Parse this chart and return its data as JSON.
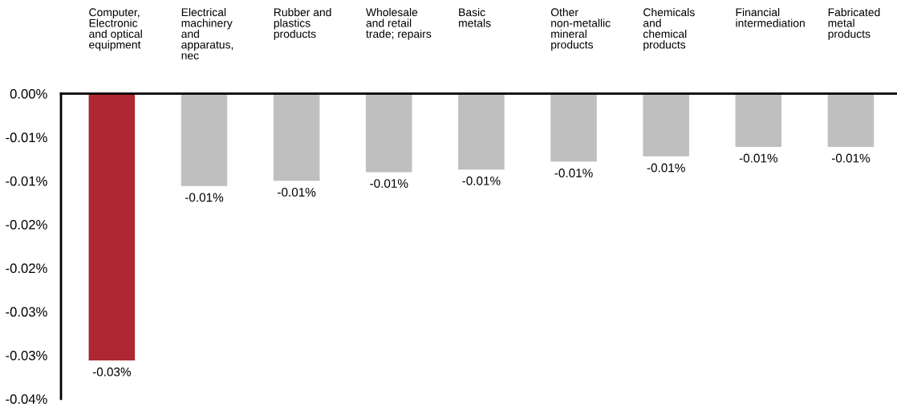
{
  "chart_data": {
    "type": "bar",
    "categories": [
      "Computer,\nElectronic\nand optical\nequipment",
      "Electrical\nmachinery\nand\napparatus,\nnec",
      "Rubber and\nplastics\nproducts",
      "Wholesale\nand retail\ntrade; repairs",
      "Basic\nmetals",
      "Other\nnon-metallic\nmineral\nproducts",
      "Chemicals\nand\nchemical\nproducts",
      "Financial\nintermediation",
      "Fabricated\nmetal\nproducts"
    ],
    "values": [
      -0.0306,
      -0.0106,
      -0.01,
      -0.009,
      -0.0087,
      -0.0078,
      -0.0072,
      -0.0061,
      -0.0061
    ],
    "colors": [
      "#ae2831",
      "#bfbfbf",
      "#bfbfbf",
      "#bfbfbf",
      "#bfbfbf",
      "#bfbfbf",
      "#bfbfbf",
      "#bfbfbf",
      "#bfbfbf"
    ],
    "value_labels": [
      "-0.03%",
      "-0.01%",
      "-0.01%",
      "-0.01%",
      "-0.01%",
      "-0.01%",
      "-0.01%",
      "-0.01%",
      "-0.01%"
    ],
    "ylim": [
      -0.035,
      0
    ],
    "yticks": [
      {
        "value": 0,
        "label": "0.00%"
      },
      {
        "value": -0.005,
        "label": "-0.01%"
      },
      {
        "value": -0.01,
        "label": "-0.01%"
      },
      {
        "value": -0.015,
        "label": "-0.02%"
      },
      {
        "value": -0.02,
        "label": "-0.02%"
      },
      {
        "value": -0.025,
        "label": "-0.03%"
      },
      {
        "value": -0.03,
        "label": "-0.03%"
      },
      {
        "value": -0.035,
        "label": "-0.04%"
      }
    ],
    "grid": false,
    "legend": false
  }
}
